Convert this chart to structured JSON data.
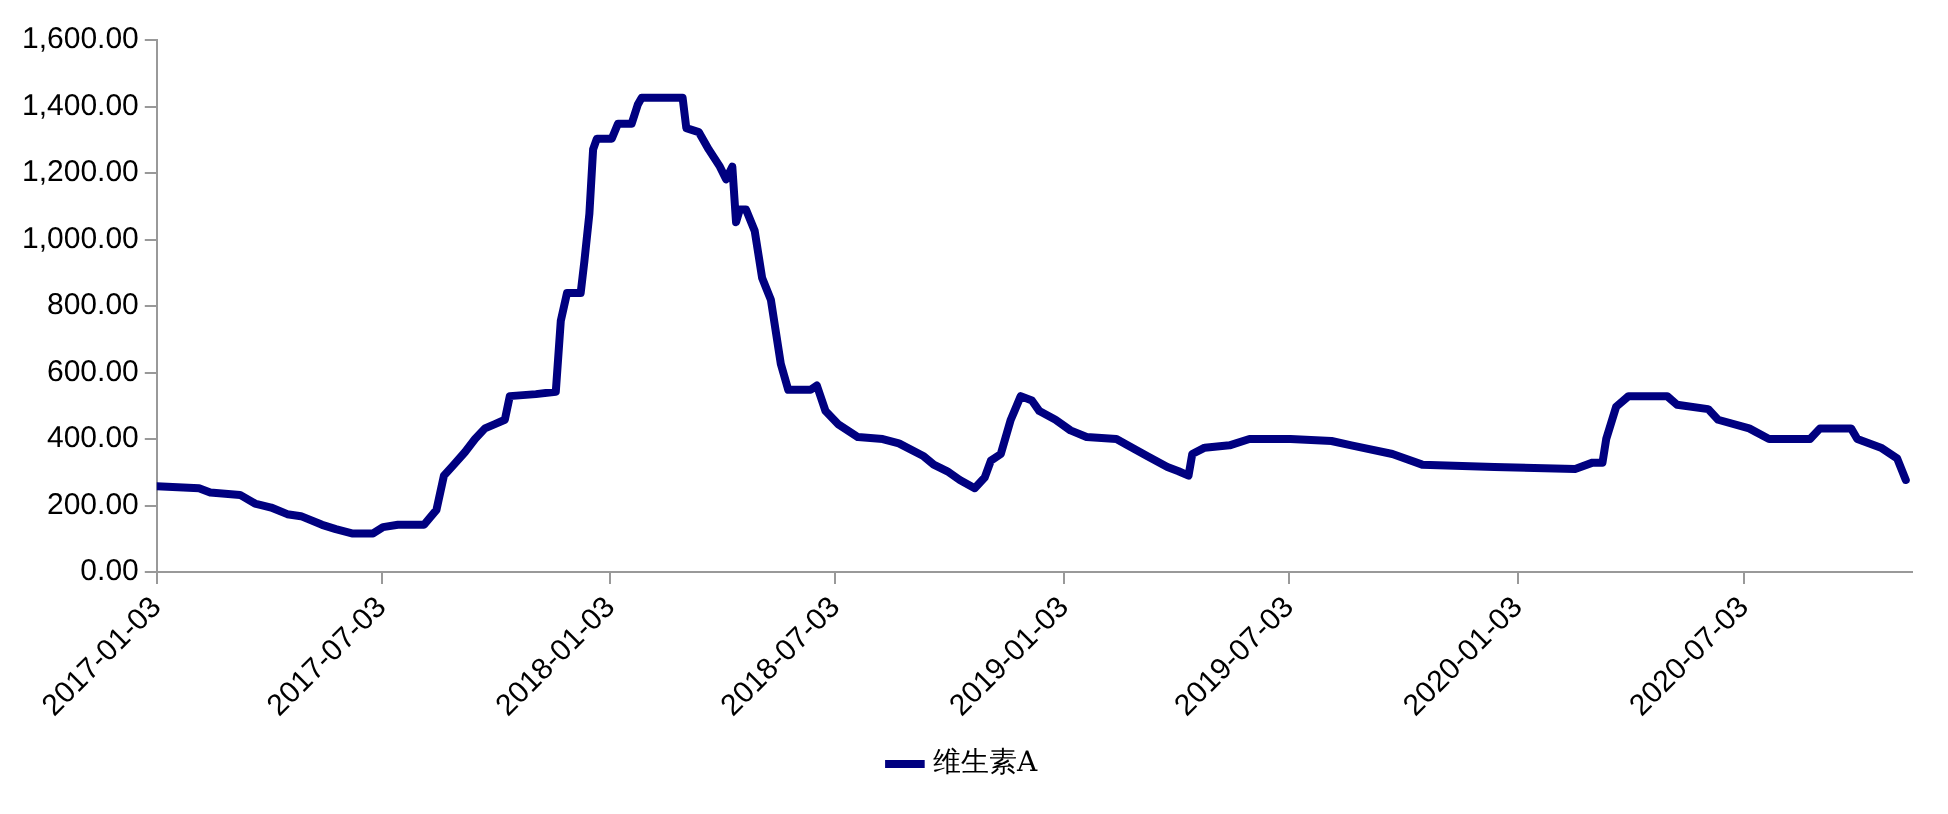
{
  "chart_data": {
    "type": "line",
    "x": [
      "2017-01-03",
      "2017-02-06",
      "2017-02-15",
      "2017-03-11",
      "2017-03-23",
      "2017-04-05",
      "2017-04-18",
      "2017-04-29",
      "2017-05-16",
      "2017-05-27",
      "2017-06-09",
      "2017-06-26",
      "2017-07-04",
      "2017-07-16",
      "2017-08-06",
      "2017-08-16",
      "2017-08-22",
      "2017-08-30",
      "2017-09-08",
      "2017-09-16",
      "2017-09-24",
      "2017-10-02",
      "2017-10-10",
      "2017-10-14",
      "2017-11-04",
      "2017-11-20",
      "2017-11-24",
      "2017-11-29",
      "2017-12-10",
      "2017-12-13",
      "2017-12-17",
      "2017-12-20",
      "2017-12-23",
      "2018-01-04",
      "2018-01-09",
      "2018-01-20",
      "2018-01-25",
      "2018-01-28",
      "2018-03-02",
      "2018-03-05",
      "2018-03-15",
      "2018-03-23",
      "2018-04-01",
      "2018-04-06",
      "2018-04-11",
      "2018-04-14",
      "2018-04-17",
      "2018-04-22",
      "2018-04-29",
      "2018-05-05",
      "2018-05-12",
      "2018-05-20",
      "2018-05-26",
      "2018-06-13",
      "2018-06-18",
      "2018-06-25",
      "2018-07-05",
      "2018-07-21",
      "2018-08-10",
      "2018-08-23",
      "2018-09-12",
      "2018-09-20",
      "2018-10-01",
      "2018-10-11",
      "2018-10-23",
      "2018-10-31",
      "2018-11-05",
      "2018-11-13",
      "2018-11-21",
      "2018-11-29",
      "2018-12-08",
      "2018-12-14",
      "2018-12-27",
      "2019-01-08",
      "2019-01-21",
      "2019-02-14",
      "2019-02-23",
      "2019-03-11",
      "2019-03-27",
      "2019-04-05",
      "2019-04-13",
      "2019-04-16",
      "2019-04-26",
      "2019-05-16",
      "2019-06-01",
      "2019-07-04",
      "2019-08-06",
      "2019-08-22",
      "2019-09-24",
      "2019-10-18",
      "2019-12-15",
      "2020-02-18",
      "2020-03-03",
      "2020-03-11",
      "2020-03-14",
      "2020-03-22",
      "2020-04-01",
      "2020-05-02",
      "2020-05-10",
      "2020-06-04",
      "2020-06-12",
      "2020-07-07",
      "2020-07-23",
      "2020-08-25",
      "2020-09-02",
      "2020-09-27",
      "2020-10-02",
      "2020-10-21",
      "2020-11-03",
      "2020-11-10"
    ],
    "series": [
      {
        "name": "维生素A",
        "color": "#000080",
        "values": [
          258,
          252,
          239,
          232,
          206,
          194,
          174,
          168,
          142,
          129,
          116,
          116,
          135,
          142,
          142,
          187,
          290,
          323,
          361,
          400,
          432,
          445,
          458,
          529,
          535,
          542,
          755,
          839,
          839,
          935,
          1077,
          1271,
          1303,
          1303,
          1348,
          1348,
          1406,
          1426,
          1426,
          1335,
          1323,
          1271,
          1219,
          1181,
          1219,
          1052,
          1090,
          1090,
          1026,
          884,
          819,
          626,
          548,
          548,
          561,
          484,
          445,
          406,
          400,
          387,
          348,
          323,
          303,
          277,
          252,
          284,
          335,
          355,
          458,
          529,
          516,
          484,
          458,
          426,
          406,
          400,
          381,
          348,
          316,
          303,
          290,
          355,
          374,
          381,
          400,
          400,
          394,
          381,
          355,
          323,
          316,
          310,
          329,
          329,
          400,
          497,
          529,
          529,
          503,
          490,
          458,
          432,
          400,
          400,
          432,
          432,
          400,
          374,
          342,
          277
        ]
      }
    ],
    "xlim": [
      "2017-01-03",
      "2020-11-15"
    ],
    "xticks": [
      "2017-01-03",
      "2017-07-03",
      "2018-01-03",
      "2018-07-03",
      "2019-01-03",
      "2019-07-03",
      "2020-01-03",
      "2020-07-03"
    ],
    "ylim": [
      0,
      1600
    ],
    "yticks": [
      {
        "value": 0,
        "label": "0.00"
      },
      {
        "value": 200,
        "label": "200.00"
      },
      {
        "value": 400,
        "label": "400.00"
      },
      {
        "value": 600,
        "label": "600.00"
      },
      {
        "value": 800,
        "label": "800.00"
      },
      {
        "value": 1000,
        "label": "1,000.00"
      },
      {
        "value": 1200,
        "label": "1,200.00"
      },
      {
        "value": 1400,
        "label": "1,400.00"
      },
      {
        "value": 1600,
        "label": "1,600.00"
      }
    ],
    "grid": false,
    "legend": "bottom",
    "marker": "none",
    "line_style": "solid"
  }
}
